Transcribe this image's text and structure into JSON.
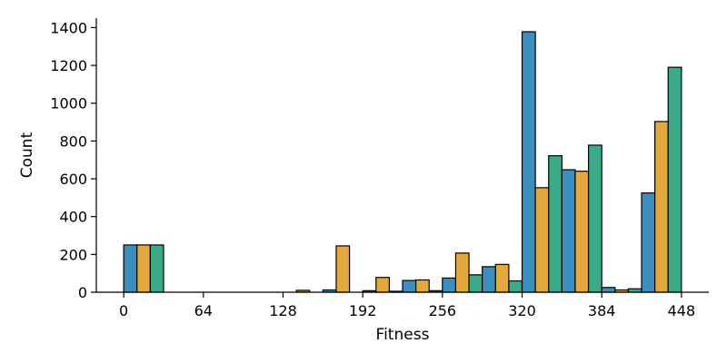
{
  "chart_data": {
    "type": "bar",
    "title": "",
    "xlabel": "Fitness",
    "ylabel": "Count",
    "ylim": [
      0,
      1450
    ],
    "xlim": [
      -22,
      470
    ],
    "bin_width": 32,
    "x_ticks": [
      0,
      64,
      128,
      192,
      256,
      320,
      384,
      448
    ],
    "y_ticks": [
      0,
      200,
      400,
      600,
      800,
      1000,
      1200,
      1400
    ],
    "bin_starts": [
      0,
      32,
      64,
      96,
      128,
      160,
      192,
      224,
      256,
      288,
      320,
      352,
      384,
      416
    ],
    "series": [
      {
        "color": "#3a8fc0",
        "values": [
          250,
          0,
          0,
          0,
          0,
          12,
          8,
          62,
          75,
          135,
          1378,
          648,
          25,
          525
        ]
      },
      {
        "color": "#e4a83c",
        "values": [
          250,
          0,
          0,
          0,
          10,
          245,
          78,
          65,
          207,
          147,
          553,
          640,
          12,
          903
        ]
      },
      {
        "color": "#3aaa88",
        "values": [
          250,
          0,
          0,
          0,
          0,
          0,
          5,
          8,
          92,
          60,
          722,
          778,
          18,
          1190
        ]
      }
    ],
    "grid": false,
    "legend": "none"
  }
}
